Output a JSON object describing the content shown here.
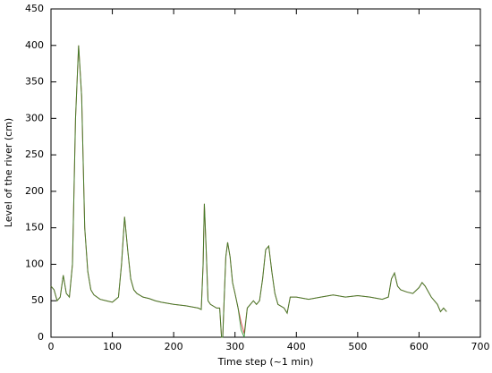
{
  "chart_data": {
    "type": "line",
    "xlabel": "Time step (~1 min)",
    "ylabel": "Level of the river (cm)",
    "x": [
      0,
      5,
      10,
      15,
      20,
      25,
      30,
      35,
      40,
      45,
      50,
      55,
      60,
      65,
      70,
      80,
      90,
      100,
      110,
      115,
      120,
      125,
      130,
      135,
      140,
      150,
      160,
      170,
      180,
      200,
      220,
      240,
      245,
      248,
      250,
      253,
      256,
      260,
      270,
      275,
      278,
      280,
      282,
      285,
      288,
      292,
      296,
      300,
      305,
      310,
      315,
      320,
      325,
      330,
      335,
      340,
      345,
      350,
      355,
      360,
      365,
      370,
      380,
      385,
      390,
      400,
      420,
      440,
      460,
      480,
      500,
      520,
      540,
      550,
      555,
      560,
      565,
      570,
      580,
      590,
      600,
      605,
      610,
      620,
      630,
      635,
      640,
      645
    ],
    "series": [
      {
        "color": "#cc2222",
        "values": [
          70,
          65,
          50,
          55,
          85,
          60,
          55,
          100,
          300,
          400,
          330,
          150,
          90,
          65,
          58,
          52,
          50,
          48,
          55,
          100,
          165,
          120,
          80,
          65,
          60,
          55,
          53,
          50,
          48,
          45,
          43,
          40,
          38,
          100,
          183,
          120,
          50,
          45,
          40,
          40,
          0,
          0,
          45,
          110,
          130,
          110,
          75,
          60,
          40,
          20,
          5,
          40,
          45,
          50,
          45,
          50,
          80,
          120,
          125,
          90,
          60,
          45,
          40,
          33,
          55,
          55,
          52,
          55,
          58,
          55,
          57,
          55,
          52,
          55,
          80,
          88,
          70,
          65,
          62,
          60,
          68,
          75,
          70,
          55,
          45,
          35,
          40,
          35
        ]
      },
      {
        "color": "#228822",
        "values": [
          70,
          65,
          50,
          55,
          85,
          60,
          55,
          100,
          300,
          400,
          330,
          150,
          90,
          65,
          58,
          52,
          50,
          48,
          55,
          100,
          165,
          120,
          80,
          65,
          60,
          55,
          53,
          50,
          48,
          45,
          43,
          40,
          38,
          100,
          183,
          120,
          50,
          45,
          40,
          40,
          0,
          0,
          45,
          110,
          130,
          110,
          75,
          60,
          40,
          10,
          0,
          40,
          45,
          50,
          45,
          50,
          80,
          120,
          125,
          90,
          60,
          45,
          40,
          33,
          55,
          55,
          52,
          55,
          58,
          55,
          57,
          55,
          52,
          55,
          80,
          88,
          70,
          65,
          62,
          60,
          68,
          75,
          70,
          55,
          45,
          35,
          40,
          35
        ]
      }
    ],
    "xlim": [
      0,
      700
    ],
    "xticks": [
      0,
      100,
      200,
      300,
      400,
      500,
      600,
      700
    ],
    "ylim": [
      0,
      450
    ],
    "yticks": [
      0,
      50,
      100,
      150,
      200,
      250,
      300,
      350,
      400,
      450
    ]
  }
}
